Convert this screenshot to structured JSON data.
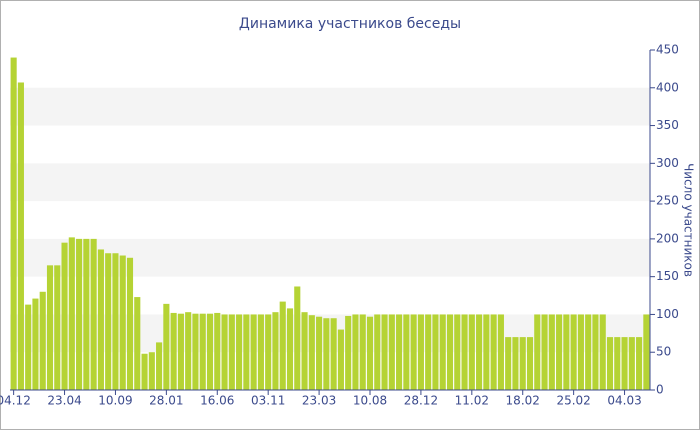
{
  "chart_data": {
    "type": "bar",
    "title": "Динамика участников беседы",
    "y_axis_label": "Число участников",
    "categories": [
      "04.12",
      null,
      null,
      null,
      null,
      null,
      null,
      "23.04",
      null,
      null,
      null,
      null,
      null,
      null,
      "10.09",
      null,
      null,
      null,
      null,
      null,
      null,
      "28.01",
      null,
      null,
      null,
      null,
      null,
      null,
      "16.06",
      null,
      null,
      null,
      null,
      null,
      null,
      "03.11",
      null,
      null,
      null,
      null,
      null,
      null,
      "23.03",
      null,
      null,
      null,
      null,
      null,
      null,
      "10.08",
      null,
      null,
      null,
      null,
      null,
      null,
      "28.12",
      null,
      null,
      null,
      null,
      null,
      null,
      "11.02",
      null,
      null,
      null,
      null,
      null,
      null,
      "18.02",
      null,
      null,
      null,
      null,
      null,
      null,
      "25.02",
      null,
      null,
      null,
      null,
      null,
      null,
      "04.03",
      null,
      null,
      null
    ],
    "values": [
      440,
      407,
      113,
      121,
      130,
      165,
      165,
      195,
      202,
      200,
      200,
      200,
      186,
      181,
      181,
      178,
      175,
      123,
      48,
      50,
      63,
      114,
      102,
      101,
      103,
      101,
      101,
      101,
      102,
      100,
      100,
      100,
      100,
      100,
      100,
      100,
      103,
      117,
      108,
      137,
      103,
      99,
      97,
      95,
      95,
      80,
      98,
      100,
      100,
      97,
      100,
      100,
      100,
      100,
      100,
      100,
      100,
      100,
      100,
      100,
      100,
      100,
      100,
      100,
      100,
      100,
      100,
      100,
      70,
      70,
      70,
      70,
      100,
      100,
      100,
      100,
      100,
      100,
      100,
      100,
      100,
      100,
      70,
      70,
      70,
      70,
      70,
      100
    ],
    "color": "#b5d334",
    "ylim": [
      0,
      450
    ],
    "yticks": [
      0,
      50,
      100,
      150,
      200,
      250,
      300,
      350,
      400,
      450
    ],
    "y_axis_side": "right",
    "grid": "bands"
  }
}
